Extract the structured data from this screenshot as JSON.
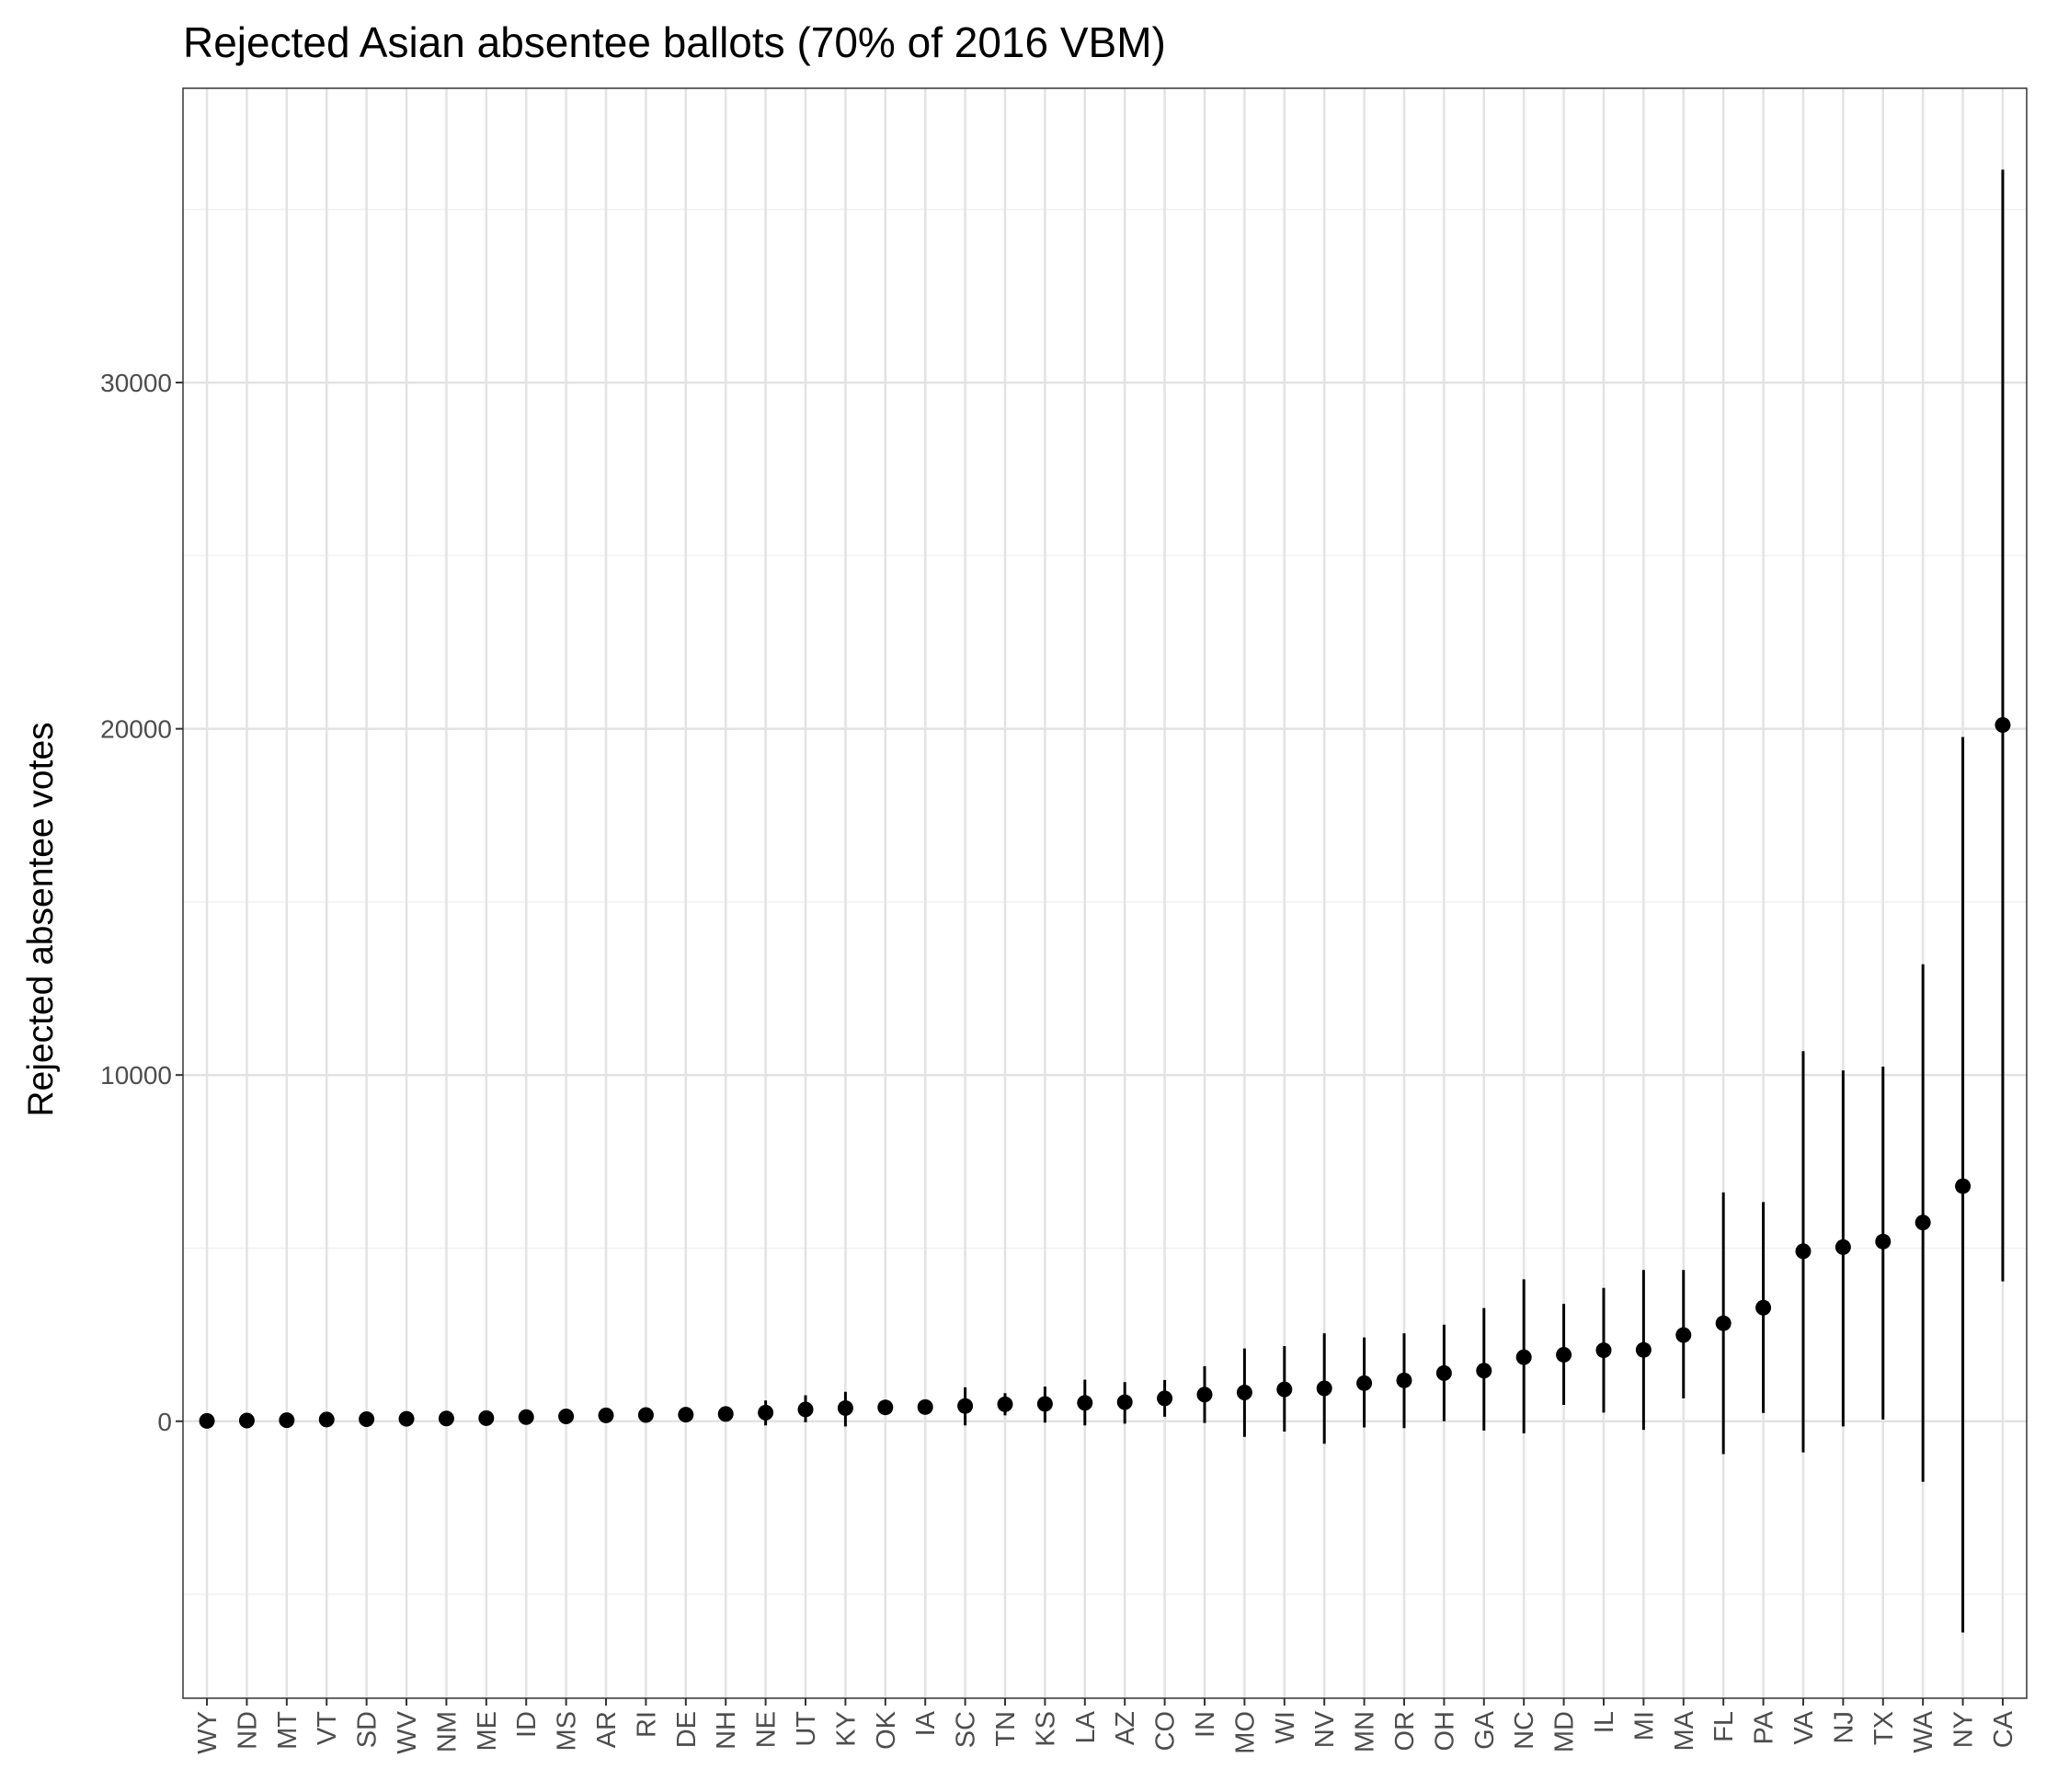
{
  "chart_data": {
    "type": "scatter",
    "subtype": "pointrange",
    "title": "Rejected Asian absentee ballots (70% of 2016 VBM)",
    "xlabel": "",
    "ylabel": "Rejected absentee votes",
    "ylim": [
      -8000,
      38500
    ],
    "yticks": [
      0,
      10000,
      20000,
      30000
    ],
    "ytick_labels": [
      "0",
      "10000",
      "20000",
      "30000"
    ],
    "grid": true,
    "legend": "none",
    "colors": {
      "point": "#000000",
      "gridMajor": "#e3e3e3",
      "gridMinor": "#f1f1f1",
      "panelBorder": "#333333"
    },
    "categories": [
      "WY",
      "ND",
      "MT",
      "VT",
      "SD",
      "WV",
      "NM",
      "ME",
      "ID",
      "MS",
      "AR",
      "RI",
      "DE",
      "NH",
      "NE",
      "UT",
      "KY",
      "OK",
      "IA",
      "SC",
      "TN",
      "KS",
      "LA",
      "AZ",
      "CO",
      "IN",
      "MO",
      "WI",
      "NV",
      "MN",
      "OR",
      "OH",
      "GA",
      "NC",
      "MD",
      "IL",
      "MI",
      "MA",
      "FL",
      "PA",
      "VA",
      "NJ",
      "TX",
      "WA",
      "NY",
      "CA"
    ],
    "values": [
      10,
      20,
      30,
      50,
      60,
      70,
      80,
      90,
      120,
      140,
      170,
      180,
      190,
      210,
      250,
      340,
      380,
      400,
      410,
      440,
      490,
      500,
      530,
      550,
      660,
      770,
      830,
      920,
      950,
      1100,
      1180,
      1390,
      1460,
      1850,
      1920,
      2050,
      2060,
      2490,
      2830,
      3280,
      4910,
      5030,
      5190,
      5740,
      6790,
      20110
    ],
    "lower": [
      -20,
      -10,
      -10,
      10,
      20,
      30,
      30,
      30,
      60,
      80,
      110,
      120,
      110,
      150,
      -120,
      -30,
      -150,
      180,
      200,
      -120,
      170,
      -40,
      -120,
      -70,
      130,
      -50,
      -450,
      -300,
      -650,
      -180,
      -200,
      0,
      -270,
      -350,
      470,
      250,
      -250,
      660,
      -950,
      240,
      -900,
      -150,
      50,
      -1750,
      -6100,
      4040
    ],
    "upper": [
      40,
      50,
      70,
      90,
      100,
      110,
      130,
      150,
      180,
      200,
      230,
      240,
      270,
      270,
      600,
      750,
      850,
      620,
      620,
      980,
      810,
      1000,
      1200,
      1130,
      1190,
      1590,
      2100,
      2170,
      2540,
      2420,
      2540,
      2790,
      3270,
      4100,
      3390,
      3850,
      4370,
      4370,
      6610,
      6330,
      10690,
      10130,
      10240,
      13200,
      19760,
      36150
    ]
  }
}
